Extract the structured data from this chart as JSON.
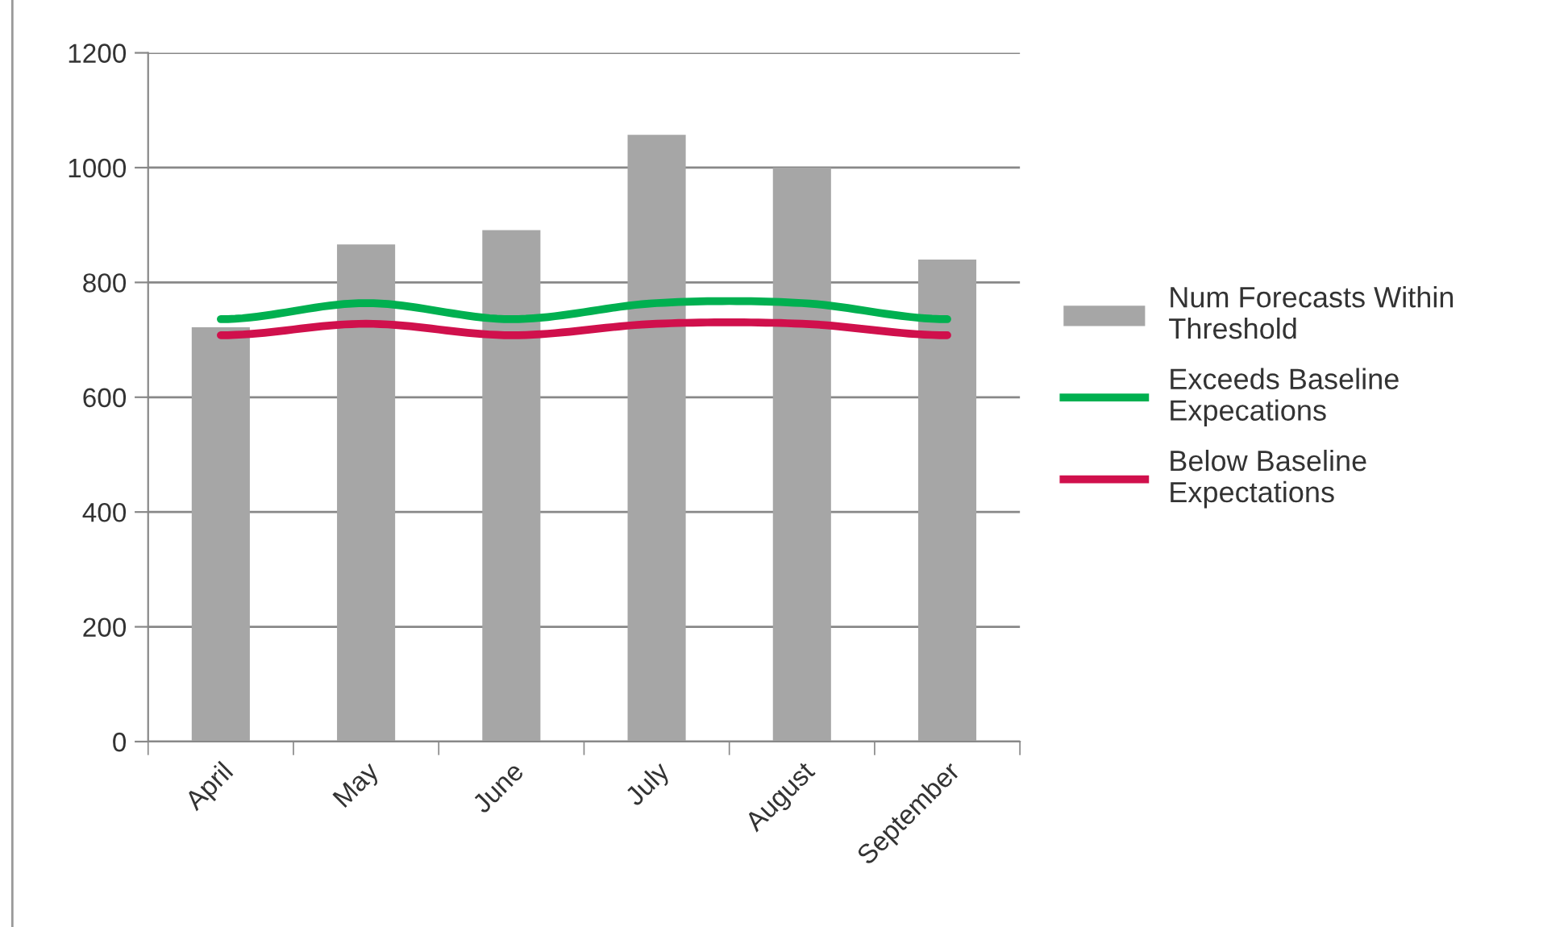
{
  "chart_data": {
    "type": "bar",
    "categories": [
      "April",
      "May",
      "June",
      "July",
      "August",
      "September"
    ],
    "series": [
      {
        "name": "Num Forecasts Within Threshold",
        "color": "#a6a6a6",
        "values": [
          722,
          866,
          891,
          1057,
          1000,
          840
        ]
      },
      {
        "name": "Exceeds Baseline Expecations",
        "type": "line",
        "color": "#00b050",
        "values": [
          736,
          764,
          736,
          764,
          764,
          736
        ]
      },
      {
        "name": "Below Baseline Expectations",
        "type": "line",
        "color": "#d0104c",
        "values": [
          708,
          728,
          708,
          728,
          728,
          708
        ]
      }
    ],
    "ylim": [
      0,
      1200
    ],
    "yticks": [
      0,
      200,
      400,
      600,
      800,
      1000,
      1200
    ],
    "grid": "y",
    "legend": "right",
    "marker": "none",
    "line_style": "solid"
  }
}
